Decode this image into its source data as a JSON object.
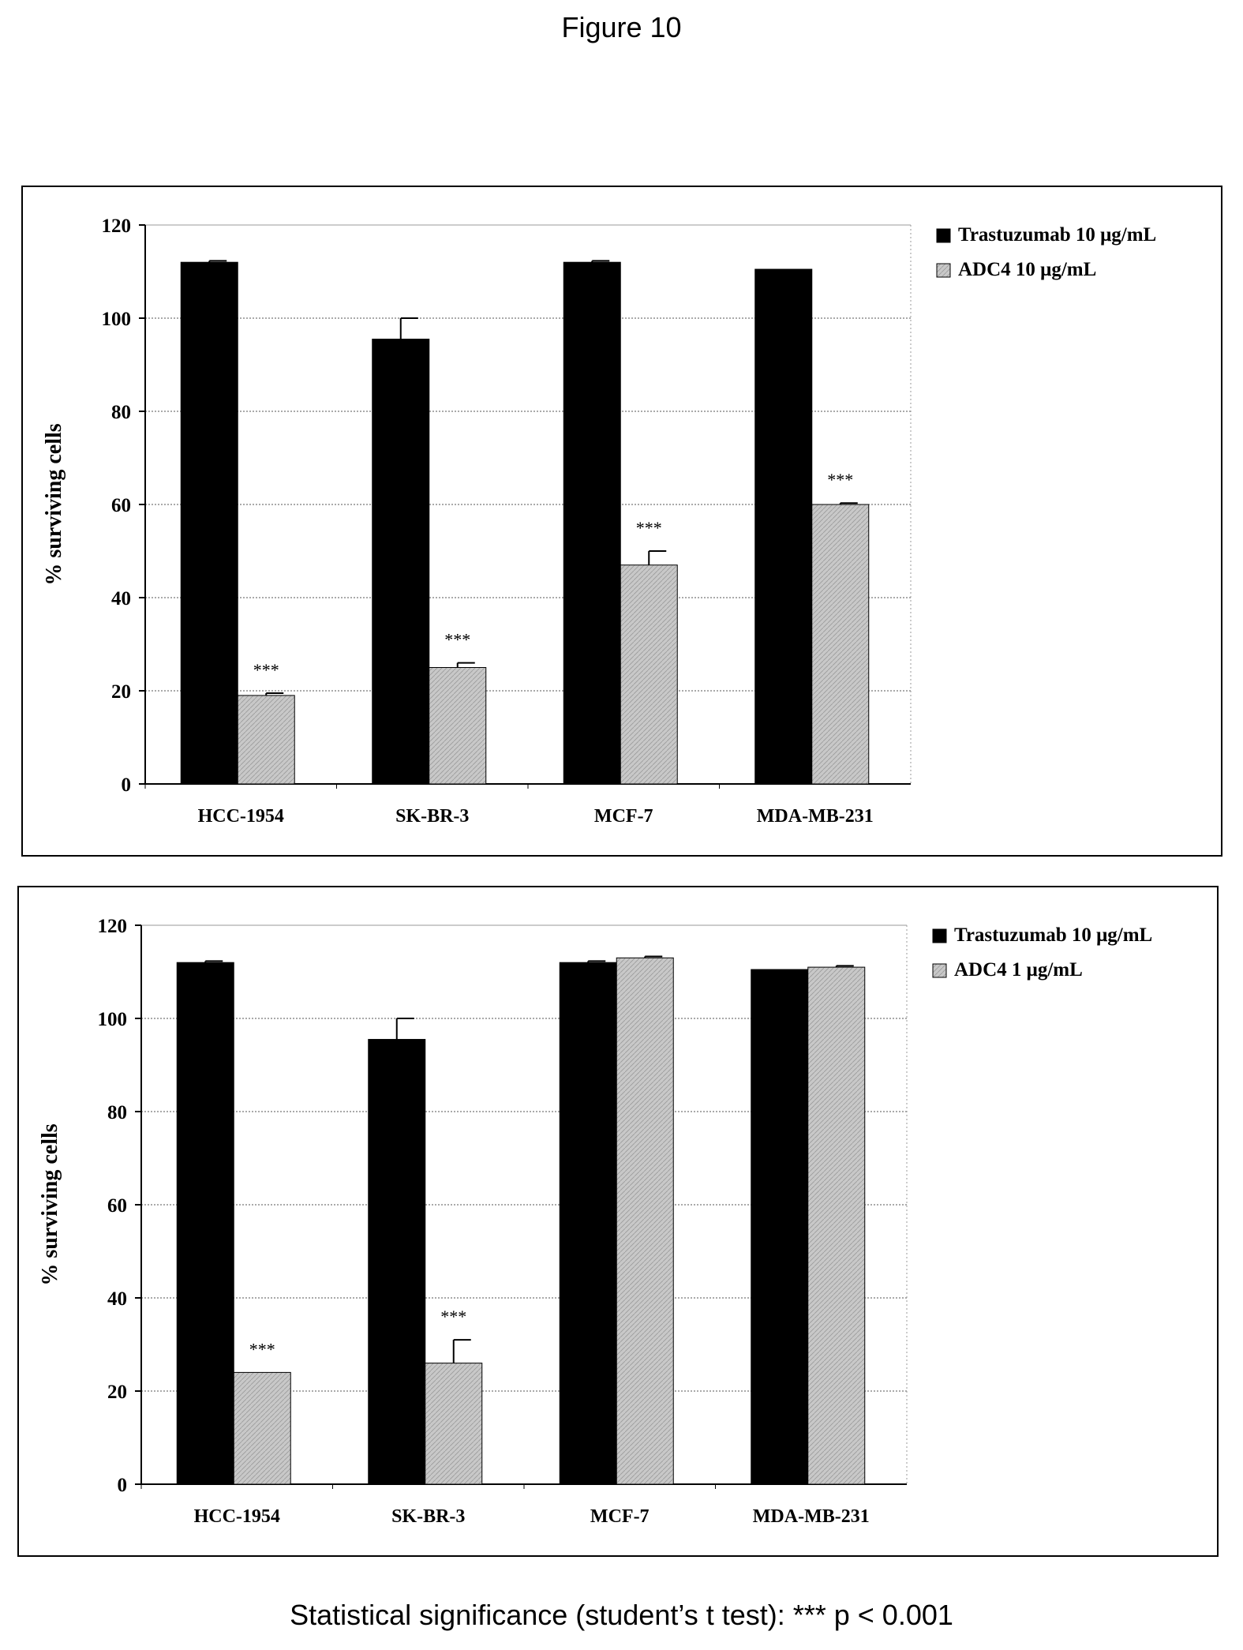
{
  "figure": {
    "title": "Figure 10",
    "footnote": "Statistical significance (student’s t test): *** p < 0.001"
  },
  "colors": {
    "trastuzumab": "#000000",
    "adc4": "#c8c8c8",
    "grid": "#555555"
  },
  "chart_data": [
    {
      "type": "bar",
      "categories": [
        "HCC-1954",
        "SK-BR-3",
        "MCF-7",
        "MDA-MB-231"
      ],
      "ylabel": "% surviving cells",
      "ylim": [
        0,
        120
      ],
      "yticks": [
        0,
        20,
        40,
        60,
        80,
        100,
        120
      ],
      "grid": true,
      "legend_position": "right",
      "series": [
        {
          "name": "Trastuzumab 10 μg/mL",
          "values": [
            112,
            95.5,
            112,
            110.5
          ],
          "errors": [
            0.3,
            4.5,
            0.3,
            0
          ],
          "color": "#000000",
          "annotations": [
            "",
            "",
            "",
            ""
          ]
        },
        {
          "name": "ADC4 10 μg/mL",
          "values": [
            19,
            25,
            47,
            60
          ],
          "errors": [
            0.5,
            1,
            3,
            0.3
          ],
          "color": "#c8c8c8",
          "annotations": [
            "***",
            "***",
            "***",
            "***"
          ]
        }
      ]
    },
    {
      "type": "bar",
      "categories": [
        "HCC-1954",
        "SK-BR-3",
        "MCF-7",
        "MDA-MB-231"
      ],
      "ylabel": "% surviving cells",
      "ylim": [
        0,
        120
      ],
      "yticks": [
        0,
        20,
        40,
        60,
        80,
        100,
        120
      ],
      "grid": true,
      "legend_position": "right",
      "series": [
        {
          "name": "Trastuzumab 10 μg/mL",
          "values": [
            112,
            95.5,
            112,
            110.5
          ],
          "errors": [
            0.3,
            4.5,
            0.3,
            0
          ],
          "color": "#000000",
          "annotations": [
            "",
            "",
            "",
            ""
          ]
        },
        {
          "name": "ADC4 1 μg/mL",
          "values": [
            24,
            26,
            113,
            111
          ],
          "errors": [
            0,
            5,
            0.3,
            0.3
          ],
          "color": "#c8c8c8",
          "annotations": [
            "***",
            "***",
            "",
            ""
          ]
        }
      ]
    }
  ]
}
